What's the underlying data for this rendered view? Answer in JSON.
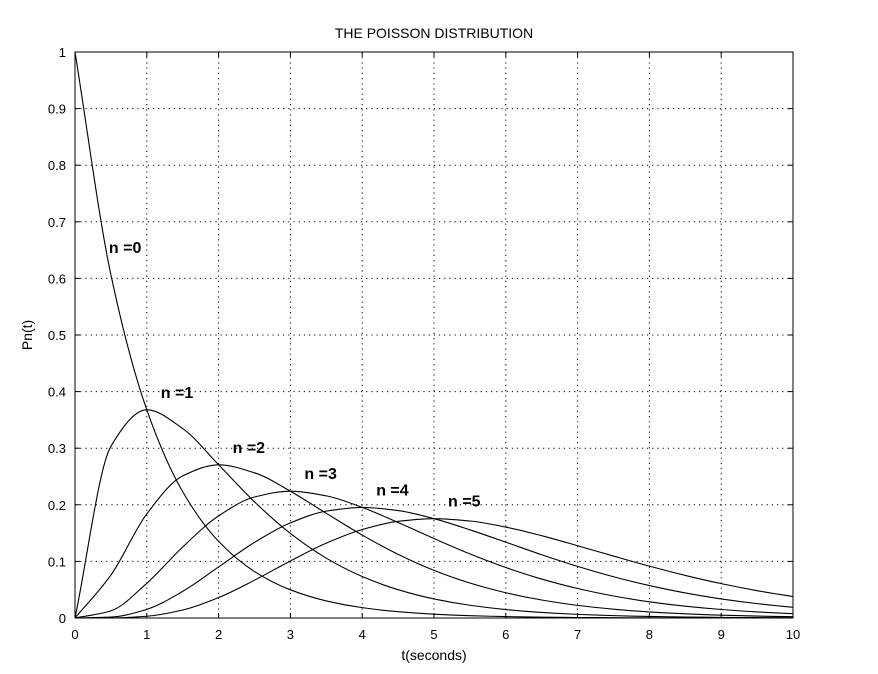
{
  "chart_data": {
    "type": "line",
    "title": "THE POISSON DISTRIBUTION",
    "xlabel": "t(seconds)",
    "ylabel": "Pn(t)",
    "xlim": [
      0,
      10
    ],
    "ylim": [
      0,
      1
    ],
    "xticks": [
      0,
      1,
      2,
      3,
      4,
      5,
      6,
      7,
      8,
      9,
      10
    ],
    "yticks": [
      0,
      0.1,
      0.2,
      0.3,
      0.4,
      0.5,
      0.6,
      0.7,
      0.8,
      0.9,
      1
    ],
    "xtick_labels": [
      "0",
      "1",
      "2",
      "3",
      "4",
      "5",
      "6",
      "7",
      "8",
      "9",
      "10"
    ],
    "ytick_labels": [
      "0",
      "0.1",
      "0.2",
      "0.3",
      "0.4",
      "0.5",
      "0.6",
      "0.7",
      "0.8",
      "0.9",
      "1"
    ],
    "grid": true,
    "x": [
      0,
      0.5,
      1,
      1.5,
      2,
      2.5,
      3,
      3.5,
      4,
      4.5,
      5,
      5.5,
      6,
      6.5,
      7,
      7.5,
      8,
      8.5,
      9,
      9.5,
      10
    ],
    "series": [
      {
        "n": 0,
        "label": "n =0",
        "values": [
          1.0,
          0.6065,
          0.3679,
          0.2231,
          0.1353,
          0.0821,
          0.0498,
          0.0302,
          0.0183,
          0.0111,
          0.0067,
          0.0041,
          0.0025,
          0.0015,
          0.0009,
          0.0006,
          0.0003,
          0.0002,
          0.0001,
          0.0001,
          0.0
        ]
      },
      {
        "n": 1,
        "label": "n =1",
        "values": [
          0.0,
          0.3033,
          0.3679,
          0.3347,
          0.2707,
          0.2052,
          0.1494,
          0.1057,
          0.0733,
          0.05,
          0.0337,
          0.0225,
          0.0149,
          0.0098,
          0.0064,
          0.0042,
          0.0027,
          0.0017,
          0.0011,
          0.0007,
          0.0005
        ]
      },
      {
        "n": 2,
        "label": "n =2",
        "values": [
          0.0,
          0.0758,
          0.1839,
          0.251,
          0.2707,
          0.2565,
          0.224,
          0.185,
          0.1465,
          0.1125,
          0.0842,
          0.0618,
          0.0446,
          0.0318,
          0.0223,
          0.0156,
          0.0107,
          0.0074,
          0.005,
          0.0034,
          0.0023
        ]
      },
      {
        "n": 3,
        "label": "n =3",
        "values": [
          0.0,
          0.0126,
          0.0613,
          0.1255,
          0.1804,
          0.2138,
          0.224,
          0.2158,
          0.1954,
          0.1687,
          0.1404,
          0.1133,
          0.0892,
          0.0688,
          0.0521,
          0.0389,
          0.0286,
          0.0208,
          0.015,
          0.0107,
          0.0076
        ]
      },
      {
        "n": 4,
        "label": "n =4",
        "values": [
          0.0,
          0.0016,
          0.0153,
          0.0471,
          0.0902,
          0.1336,
          0.168,
          0.1888,
          0.1954,
          0.1898,
          0.1755,
          0.1558,
          0.1339,
          0.1118,
          0.0912,
          0.0729,
          0.0573,
          0.0443,
          0.0337,
          0.0254,
          0.0189
        ]
      },
      {
        "n": 5,
        "label": "n =5",
        "values": [
          0.0,
          0.0002,
          0.0031,
          0.0141,
          0.0361,
          0.0668,
          0.1008,
          0.1322,
          0.1563,
          0.1708,
          0.1755,
          0.1714,
          0.1606,
          0.1454,
          0.1277,
          0.1094,
          0.0916,
          0.0752,
          0.0607,
          0.0483,
          0.0378
        ]
      }
    ]
  }
}
